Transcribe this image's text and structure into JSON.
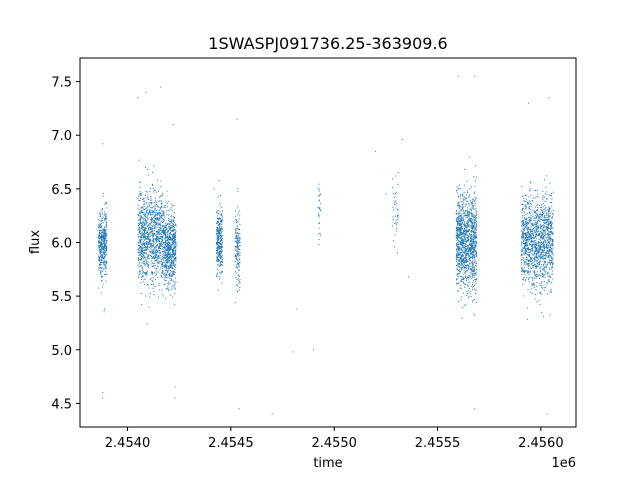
{
  "chart_data": {
    "type": "scatter",
    "title": "1SWASPJ091736.25-363909.6",
    "xlabel": "time",
    "ylabel": "flux",
    "x_offset_label": "1e6",
    "xlim": [
      2453770,
      2456170
    ],
    "ylim": [
      4.28,
      7.72
    ],
    "x_ticks": [
      2453870,
      2454070,
      2454270,
      2454470,
      2454670,
      2454870,
      2455070,
      2455270,
      2455470,
      2455670,
      2455870,
      2456070
    ],
    "x_tick_labels": [
      "2.4540",
      "2.4545",
      "2.4550",
      "2.4555",
      "2.4560"
    ],
    "x_tick_label_values": [
      2454000,
      2454500,
      2455000,
      2455500,
      2456000
    ],
    "y_ticks": [
      4.5,
      5.0,
      5.5,
      6.0,
      6.5,
      7.0,
      7.5
    ],
    "y_tick_labels": [
      "4.5",
      "5.0",
      "5.5",
      "6.0",
      "6.5",
      "7.0",
      "7.5"
    ],
    "grid": false,
    "marker_color": "#1f77b4",
    "series": [
      {
        "clusters": [
          {
            "x_range": [
              2453860,
              2453900
            ],
            "y_center": 6.0,
            "y_spread": 0.28,
            "density": 420
          },
          {
            "x_range": [
              2454050,
              2454180
            ],
            "y_center": 6.05,
            "y_spread": 0.38,
            "density": 1100
          },
          {
            "x_range": [
              2454180,
              2454235
            ],
            "y_center": 5.95,
            "y_spread": 0.3,
            "density": 600
          },
          {
            "x_range": [
              2454430,
              2454460
            ],
            "y_center": 6.0,
            "y_spread": 0.28,
            "density": 320
          },
          {
            "x_range": [
              2454520,
              2454545
            ],
            "y_center": 5.95,
            "y_spread": 0.35,
            "density": 160
          },
          {
            "x_range": [
              2454920,
              2454935
            ],
            "y_center": 6.3,
            "y_spread": 0.25,
            "density": 30
          },
          {
            "x_range": [
              2455280,
              2455310
            ],
            "y_center": 6.3,
            "y_spread": 0.25,
            "density": 40
          },
          {
            "x_range": [
              2455590,
              2455690
            ],
            "y_center": 6.0,
            "y_spread": 0.4,
            "density": 1200
          },
          {
            "x_range": [
              2455905,
              2456060
            ],
            "y_center": 6.0,
            "y_spread": 0.38,
            "density": 1300
          }
        ],
        "outliers": [
          {
            "x": 2454050,
            "y": 7.35
          },
          {
            "x": 2454090,
            "y": 7.4
          },
          {
            "x": 2454160,
            "y": 7.45
          },
          {
            "x": 2454220,
            "y": 7.1
          },
          {
            "x": 2454230,
            "y": 4.55
          },
          {
            "x": 2454230,
            "y": 4.65
          },
          {
            "x": 2454530,
            "y": 7.15
          },
          {
            "x": 2454540,
            "y": 4.45
          },
          {
            "x": 2454700,
            "y": 4.4
          },
          {
            "x": 2454800,
            "y": 4.98
          },
          {
            "x": 2454820,
            "y": 5.38
          },
          {
            "x": 2455200,
            "y": 6.85
          },
          {
            "x": 2455330,
            "y": 6.96
          },
          {
            "x": 2455360,
            "y": 5.68
          },
          {
            "x": 2455600,
            "y": 7.55
          },
          {
            "x": 2455680,
            "y": 7.55
          },
          {
            "x": 2455680,
            "y": 4.45
          },
          {
            "x": 2455940,
            "y": 7.3
          },
          {
            "x": 2456040,
            "y": 7.35
          },
          {
            "x": 2456030,
            "y": 4.4
          },
          {
            "x": 2453880,
            "y": 4.55
          },
          {
            "x": 2453880,
            "y": 4.6
          },
          {
            "x": 2453880,
            "y": 6.92
          },
          {
            "x": 2454420,
            "y": 6.5
          },
          {
            "x": 2454900,
            "y": 5.0
          },
          {
            "x": 2455250,
            "y": 6.45
          }
        ]
      }
    ]
  }
}
